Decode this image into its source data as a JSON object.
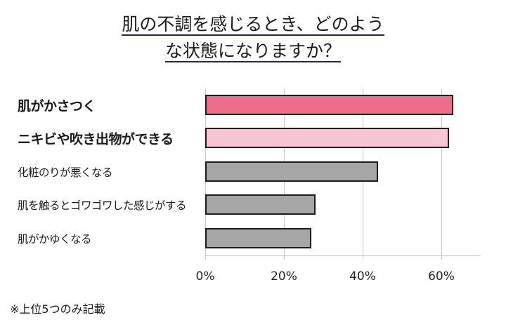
{
  "title_lines": [
    "肌の不調を感じるとき、どのよう",
    "な状態になりますか？"
  ],
  "note": "※上位5つのみ記載",
  "chart_data": {
    "type": "bar",
    "orientation": "horizontal",
    "title": "肌の不調を感じるとき、どのような状態になりますか？",
    "categories": [
      "肌がかさつく",
      "ニキビや吹き出物ができる",
      "化粧のりが悪くなる",
      "肌を触るとゴワゴワした感じがする",
      "肌がかゆくなる"
    ],
    "values": [
      63,
      62,
      44,
      28,
      27
    ],
    "bar_colors": [
      "#ee6d8a",
      "#f8c6d2",
      "#a6a6a6",
      "#a6a6a6",
      "#a6a6a6"
    ],
    "xlabel": "",
    "ylabel": "",
    "xlim": [
      0,
      70
    ],
    "x_ticks": [
      "0%",
      "20%",
      "40%",
      "60%"
    ],
    "grid": true,
    "legend": null,
    "annotation": "※上位5つのみ記載"
  }
}
